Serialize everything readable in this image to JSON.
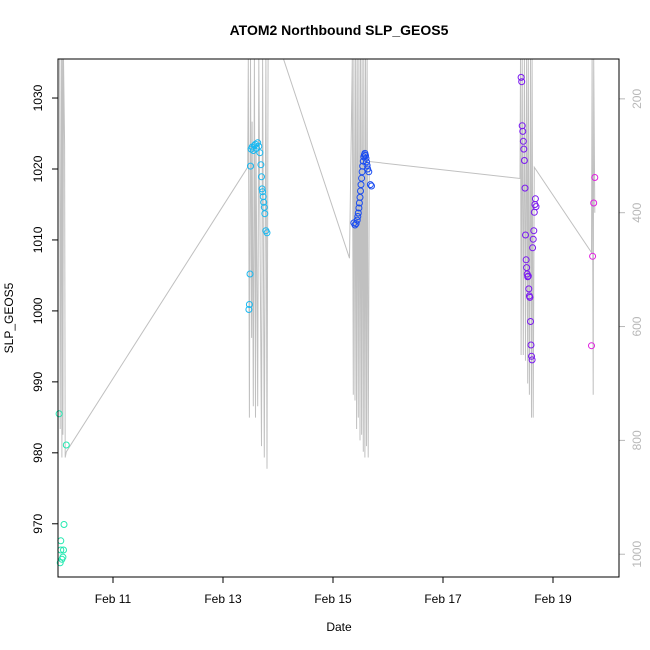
{
  "chart_data": {
    "type": "scatter",
    "title": "ATOM2 Northbound SLP_GEOS5",
    "xlabel": "Date",
    "ylabel": "SLP_GEOS5",
    "xlim": [
      10.0,
      20.2
    ],
    "ylim": [
      962.5,
      1035.5
    ],
    "x_ticks": [
      {
        "label": "Feb 11",
        "value": 11
      },
      {
        "label": "Feb 13",
        "value": 13
      },
      {
        "label": "Feb 15",
        "value": 15
      },
      {
        "label": "Feb 17",
        "value": 17
      },
      {
        "label": "Feb 19",
        "value": 19
      }
    ],
    "y_ticks": [
      970,
      980,
      990,
      1000,
      1010,
      1020,
      1030
    ],
    "y2_ticks": [
      200,
      400,
      600,
      800,
      1000
    ],
    "y2_range": [
      130,
      1040
    ],
    "y2_color": "#b8b8b8",
    "series": [
      {
        "color": "#22e8b0",
        "points": [
          {
            "x": 10.02,
            "y": 985.5
          },
          {
            "x": 10.04,
            "y": 964.5
          },
          {
            "x": 10.05,
            "y": 966.3
          },
          {
            "x": 10.05,
            "y": 967.6
          },
          {
            "x": 10.07,
            "y": 965.0
          },
          {
            "x": 10.09,
            "y": 965.3
          },
          {
            "x": 10.1,
            "y": 966.3
          },
          {
            "x": 10.11,
            "y": 969.9
          },
          {
            "x": 10.15,
            "y": 981.1
          }
        ]
      },
      {
        "color": "#1ab8f0",
        "points": [
          {
            "x": 13.47,
            "y": 1000.2
          },
          {
            "x": 13.48,
            "y": 1000.9
          },
          {
            "x": 13.49,
            "y": 1005.2
          },
          {
            "x": 13.5,
            "y": 1020.4
          },
          {
            "x": 13.51,
            "y": 1022.8
          },
          {
            "x": 13.53,
            "y": 1023.1
          },
          {
            "x": 13.55,
            "y": 1022.6
          },
          {
            "x": 13.57,
            "y": 1023.3
          },
          {
            "x": 13.59,
            "y": 1023.5
          },
          {
            "x": 13.61,
            "y": 1022.9
          },
          {
            "x": 13.63,
            "y": 1023.7
          },
          {
            "x": 13.65,
            "y": 1023.2
          },
          {
            "x": 13.67,
            "y": 1022.3
          },
          {
            "x": 13.69,
            "y": 1020.6
          },
          {
            "x": 13.7,
            "y": 1018.9
          },
          {
            "x": 13.71,
            "y": 1017.2
          },
          {
            "x": 13.72,
            "y": 1016.8
          },
          {
            "x": 13.73,
            "y": 1016.1
          },
          {
            "x": 13.74,
            "y": 1015.3
          },
          {
            "x": 13.75,
            "y": 1014.6
          },
          {
            "x": 13.76,
            "y": 1013.7
          },
          {
            "x": 13.78,
            "y": 1011.3
          },
          {
            "x": 13.8,
            "y": 1011.0
          }
        ]
      },
      {
        "color": "#1a4cf0",
        "points": [
          {
            "x": 15.38,
            "y": 1012.4
          },
          {
            "x": 15.4,
            "y": 1012.1
          },
          {
            "x": 15.42,
            "y": 1012.3
          },
          {
            "x": 15.44,
            "y": 1012.8
          },
          {
            "x": 15.45,
            "y": 1013.3
          },
          {
            "x": 15.46,
            "y": 1013.8
          },
          {
            "x": 15.47,
            "y": 1014.5
          },
          {
            "x": 15.48,
            "y": 1015.2
          },
          {
            "x": 15.49,
            "y": 1016.0
          },
          {
            "x": 15.5,
            "y": 1016.9
          },
          {
            "x": 15.51,
            "y": 1017.8
          },
          {
            "x": 15.52,
            "y": 1018.7
          },
          {
            "x": 15.53,
            "y": 1019.6
          },
          {
            "x": 15.54,
            "y": 1020.4
          },
          {
            "x": 15.55,
            "y": 1021.1
          },
          {
            "x": 15.56,
            "y": 1021.7
          },
          {
            "x": 15.57,
            "y": 1022.0
          },
          {
            "x": 15.58,
            "y": 1022.2
          },
          {
            "x": 15.59,
            "y": 1021.9
          },
          {
            "x": 15.6,
            "y": 1021.5
          },
          {
            "x": 15.61,
            "y": 1021.0
          },
          {
            "x": 15.62,
            "y": 1020.5
          },
          {
            "x": 15.63,
            "y": 1020.0
          },
          {
            "x": 15.65,
            "y": 1019.6
          },
          {
            "x": 15.68,
            "y": 1017.8
          },
          {
            "x": 15.7,
            "y": 1017.6
          }
        ]
      },
      {
        "color": "#7a18f0",
        "points": [
          {
            "x": 18.42,
            "y": 1032.9
          },
          {
            "x": 18.43,
            "y": 1032.3
          },
          {
            "x": 18.44,
            "y": 1026.1
          },
          {
            "x": 18.45,
            "y": 1025.3
          },
          {
            "x": 18.46,
            "y": 1023.9
          },
          {
            "x": 18.47,
            "y": 1022.8
          },
          {
            "x": 18.48,
            "y": 1021.2
          },
          {
            "x": 18.49,
            "y": 1017.3
          },
          {
            "x": 18.5,
            "y": 1010.7
          },
          {
            "x": 18.51,
            "y": 1007.2
          },
          {
            "x": 18.52,
            "y": 1006.1
          },
          {
            "x": 18.53,
            "y": 1005.2
          },
          {
            "x": 18.54,
            "y": 1004.8
          },
          {
            "x": 18.55,
            "y": 1004.9
          },
          {
            "x": 18.56,
            "y": 1003.1
          },
          {
            "x": 18.57,
            "y": 1002.1
          },
          {
            "x": 18.58,
            "y": 1001.9
          },
          {
            "x": 18.59,
            "y": 998.5
          },
          {
            "x": 18.6,
            "y": 995.2
          },
          {
            "x": 18.61,
            "y": 993.6
          },
          {
            "x": 18.62,
            "y": 993.1
          },
          {
            "x": 18.63,
            "y": 1008.9
          },
          {
            "x": 18.64,
            "y": 1010.1
          },
          {
            "x": 18.65,
            "y": 1011.3
          },
          {
            "x": 18.66,
            "y": 1013.9
          },
          {
            "x": 18.67,
            "y": 1015.0
          },
          {
            "x": 18.68,
            "y": 1015.8
          },
          {
            "x": 18.69,
            "y": 1014.7
          }
        ]
      },
      {
        "color": "#e020e0",
        "points": [
          {
            "x": 19.7,
            "y": 995.1
          },
          {
            "x": 19.72,
            "y": 1007.7
          },
          {
            "x": 19.74,
            "y": 1015.2
          },
          {
            "x": 19.76,
            "y": 1018.8
          }
        ]
      }
    ],
    "altitude_line": {
      "color": "#c0c0c0",
      "points": [
        [
          10.02,
          130
        ],
        [
          10.03,
          130
        ],
        [
          10.04,
          780
        ],
        [
          10.06,
          130
        ],
        [
          10.07,
          830
        ],
        [
          10.08,
          130
        ],
        [
          10.09,
          790
        ],
        [
          10.1,
          120
        ],
        [
          10.12,
          280
        ],
        [
          10.13,
          830
        ],
        [
          10.15,
          820
        ],
        [
          13.45,
          320
        ],
        [
          13.46,
          130
        ],
        [
          13.48,
          760
        ],
        [
          13.5,
          130
        ],
        [
          13.52,
          620
        ],
        [
          13.53,
          240
        ],
        [
          13.55,
          740
        ],
        [
          13.57,
          130
        ],
        [
          13.59,
          760
        ],
        [
          13.6,
          280
        ],
        [
          13.63,
          740
        ],
        [
          13.65,
          130
        ],
        [
          13.7,
          810
        ],
        [
          13.72,
          130
        ],
        [
          13.75,
          830
        ],
        [
          13.78,
          130
        ],
        [
          13.8,
          850
        ],
        [
          13.82,
          130
        ],
        [
          14.1,
          130
        ],
        [
          15.3,
          480
        ],
        [
          15.35,
          130
        ],
        [
          15.37,
          720
        ],
        [
          15.38,
          130
        ],
        [
          15.4,
          730
        ],
        [
          15.41,
          130
        ],
        [
          15.43,
          780
        ],
        [
          15.44,
          130
        ],
        [
          15.46,
          760
        ],
        [
          15.47,
          130
        ],
        [
          15.49,
          800
        ],
        [
          15.5,
          130
        ],
        [
          15.52,
          790
        ],
        [
          15.53,
          130
        ],
        [
          15.55,
          820
        ],
        [
          15.56,
          130
        ],
        [
          15.58,
          830
        ],
        [
          15.59,
          130
        ],
        [
          15.61,
          810
        ],
        [
          15.62,
          130
        ],
        [
          15.64,
          830
        ],
        [
          15.66,
          310
        ],
        [
          18.4,
          340
        ],
        [
          18.41,
          130
        ],
        [
          18.42,
          650
        ],
        [
          18.44,
          130
        ],
        [
          18.46,
          650
        ],
        [
          18.48,
          130
        ],
        [
          18.5,
          660
        ],
        [
          18.52,
          130
        ],
        [
          18.54,
          700
        ],
        [
          18.55,
          130
        ],
        [
          18.57,
          720
        ],
        [
          18.59,
          130
        ],
        [
          18.61,
          760
        ],
        [
          18.62,
          130
        ],
        [
          18.64,
          760
        ],
        [
          18.66,
          320
        ],
        [
          19.7,
          470
        ],
        [
          19.71,
          130
        ],
        [
          19.73,
          720
        ],
        [
          19.74,
          130
        ],
        [
          19.76,
          400
        ]
      ]
    }
  }
}
